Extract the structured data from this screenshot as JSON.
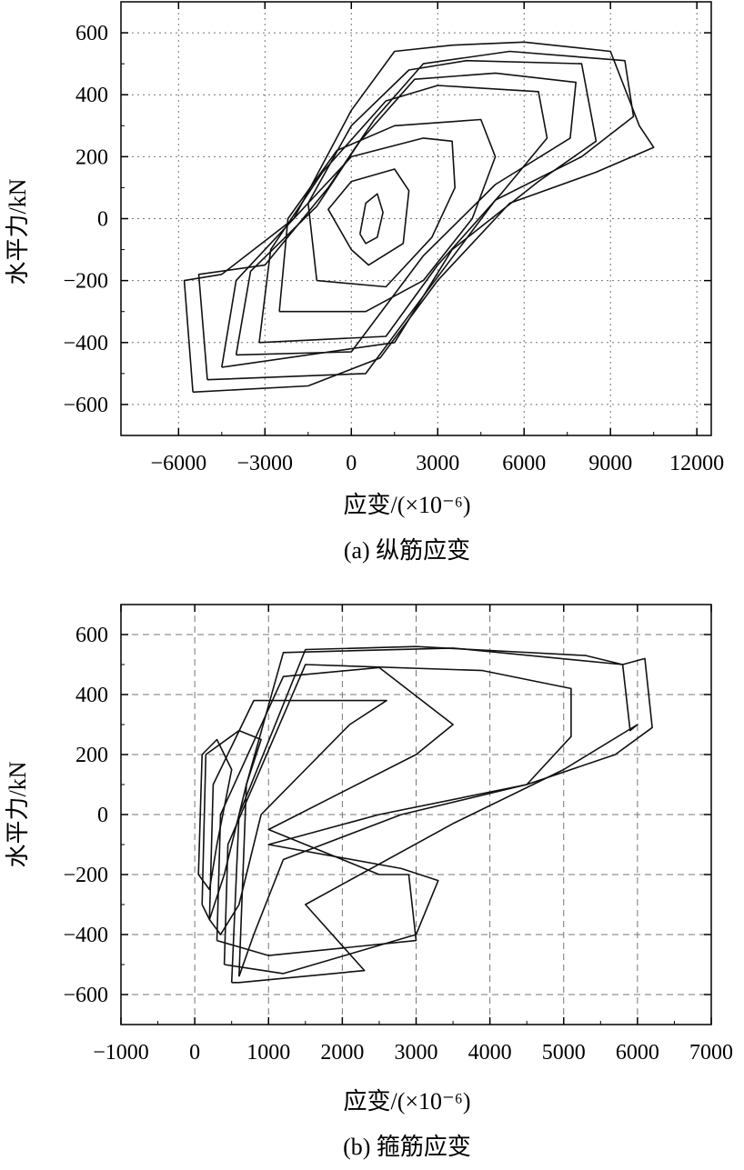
{
  "chart_data": [
    {
      "type": "line",
      "caption": "(a) 纵筋应变",
      "xlabel": "应变/(×10⁻⁶)",
      "ylabel": "水平力/kN",
      "xlim": [
        -8000,
        12500
      ],
      "ylim": [
        -700,
        700
      ],
      "xticks": [
        -6000,
        -3000,
        0,
        3000,
        6000,
        9000,
        12000
      ],
      "xtick_labels": [
        "−6000",
        "−3000",
        "0",
        "3000",
        "6000",
        "9000",
        "12000"
      ],
      "yticks": [
        -600,
        -400,
        -200,
        0,
        200,
        400,
        600
      ],
      "ytick_labels": [
        "−600",
        "−400",
        "−200",
        "0",
        "200",
        "400",
        "600"
      ],
      "grid": "dotted",
      "series": [
        {
          "points": [
            [
              300,
              -50
            ],
            [
              500,
              50
            ],
            [
              900,
              80
            ],
            [
              1100,
              20
            ],
            [
              900,
              -60
            ],
            [
              500,
              -80
            ],
            [
              300,
              -50
            ]
          ]
        },
        {
          "points": [
            [
              0,
              -100
            ],
            [
              -800,
              30
            ],
            [
              0,
              120
            ],
            [
              1500,
              160
            ],
            [
              2000,
              90
            ],
            [
              1800,
              -80
            ],
            [
              600,
              -150
            ],
            [
              0,
              -100
            ]
          ]
        },
        {
          "points": [
            [
              -1200,
              -200
            ],
            [
              -1500,
              50
            ],
            [
              0,
              200
            ],
            [
              2500,
              260
            ],
            [
              3500,
              250
            ],
            [
              3600,
              100
            ],
            [
              2800,
              -60
            ],
            [
              1200,
              -220
            ],
            [
              -1200,
              -200
            ]
          ]
        },
        {
          "points": [
            [
              -2500,
              -300
            ],
            [
              -2200,
              0
            ],
            [
              -500,
              220
            ],
            [
              1500,
              300
            ],
            [
              4500,
              320
            ],
            [
              5000,
              200
            ],
            [
              4200,
              0
            ],
            [
              2500,
              -200
            ],
            [
              500,
              -300
            ],
            [
              -2500,
              -300
            ]
          ]
        },
        {
          "points": [
            [
              -3200,
              -400
            ],
            [
              -2800,
              -100
            ],
            [
              -1000,
              150
            ],
            [
              1200,
              380
            ],
            [
              3000,
              430
            ],
            [
              6500,
              410
            ],
            [
              6800,
              260
            ],
            [
              5200,
              80
            ],
            [
              3000,
              -150
            ],
            [
              1200,
              -380
            ],
            [
              -3200,
              -400
            ]
          ]
        },
        {
          "points": [
            [
              -4500,
              -480
            ],
            [
              -4000,
              -200
            ],
            [
              -1500,
              50
            ],
            [
              0,
              300
            ],
            [
              2000,
              480
            ],
            [
              4000,
              510
            ],
            [
              8000,
              500
            ],
            [
              8500,
              250
            ],
            [
              6500,
              120
            ],
            [
              3500,
              -100
            ],
            [
              1500,
              -400
            ],
            [
              -4500,
              -480
            ]
          ]
        },
        {
          "points": [
            [
              -5500,
              -560
            ],
            [
              -5800,
              -200
            ],
            [
              -4500,
              -180
            ],
            [
              -2000,
              0
            ],
            [
              0,
              350
            ],
            [
              1500,
              540
            ],
            [
              3500,
              560
            ],
            [
              6000,
              570
            ],
            [
              9000,
              540
            ],
            [
              10000,
              300
            ],
            [
              10500,
              230
            ],
            [
              8500,
              150
            ],
            [
              5500,
              50
            ],
            [
              3000,
              -200
            ],
            [
              1000,
              -450
            ],
            [
              -1500,
              -540
            ],
            [
              -5500,
              -560
            ]
          ]
        },
        {
          "points": [
            [
              -5000,
              -520
            ],
            [
              -5300,
              -180
            ],
            [
              -3000,
              -150
            ],
            [
              -800,
              100
            ],
            [
              800,
              320
            ],
            [
              2500,
              500
            ],
            [
              5500,
              540
            ],
            [
              9500,
              510
            ],
            [
              9800,
              330
            ],
            [
              8000,
              200
            ],
            [
              5000,
              60
            ],
            [
              2500,
              -250
            ],
            [
              500,
              -500
            ],
            [
              -5000,
              -520
            ]
          ]
        },
        {
          "points": [
            [
              -4000,
              -440
            ],
            [
              -3500,
              -170
            ],
            [
              -1200,
              40
            ],
            [
              300,
              250
            ],
            [
              2200,
              450
            ],
            [
              5000,
              470
            ],
            [
              7800,
              440
            ],
            [
              7600,
              260
            ],
            [
              5000,
              110
            ],
            [
              2500,
              -120
            ],
            [
              0,
              -430
            ],
            [
              -4000,
              -440
            ]
          ]
        }
      ]
    },
    {
      "type": "line",
      "caption": "(b) 箍筋应变",
      "xlabel": "应变/(×10⁻⁶)",
      "ylabel": "水平力/kN",
      "xlim": [
        -1000,
        7000
      ],
      "ylim": [
        -700,
        700
      ],
      "xticks": [
        -1000,
        0,
        1000,
        2000,
        3000,
        4000,
        5000,
        6000,
        7000
      ],
      "xtick_labels": [
        "−1000",
        "0",
        "1000",
        "2000",
        "3000",
        "4000",
        "5000",
        "6000",
        "7000"
      ],
      "yticks": [
        -600,
        -400,
        -200,
        0,
        200,
        400,
        600
      ],
      "ytick_labels": [
        "−600",
        "−400",
        "−200",
        "0",
        "200",
        "400",
        "600"
      ],
      "grid": "dashed",
      "series": [
        {
          "points": [
            [
              50,
              -200
            ],
            [
              100,
              200
            ],
            [
              300,
              250
            ],
            [
              500,
              150
            ],
            [
              300,
              -100
            ],
            [
              200,
              -250
            ],
            [
              50,
              -200
            ]
          ]
        },
        {
          "points": [
            [
              100,
              -300
            ],
            [
              150,
              200
            ],
            [
              600,
              280
            ],
            [
              900,
              250
            ],
            [
              700,
              100
            ],
            [
              400,
              -200
            ],
            [
              200,
              -350
            ],
            [
              100,
              -300
            ]
          ]
        },
        {
          "points": [
            [
              200,
              -350
            ],
            [
              250,
              100
            ],
            [
              800,
              380
            ],
            [
              2000,
              380
            ],
            [
              2600,
              380
            ],
            [
              2100,
              300
            ],
            [
              1500,
              150
            ],
            [
              900,
              0
            ],
            [
              600,
              -300
            ],
            [
              350,
              -400
            ],
            [
              200,
              -350
            ]
          ]
        },
        {
          "points": [
            [
              300,
              -420
            ],
            [
              350,
              0
            ],
            [
              1200,
              460
            ],
            [
              2500,
              490
            ],
            [
              3500,
              300
            ],
            [
              3000,
              200
            ],
            [
              1000,
              -50
            ],
            [
              2500,
              -200
            ],
            [
              2900,
              -200
            ],
            [
              3000,
              -420
            ],
            [
              1000,
              -470
            ],
            [
              300,
              -420
            ]
          ]
        },
        {
          "points": [
            [
              400,
              -500
            ],
            [
              450,
              -100
            ],
            [
              1500,
              500
            ],
            [
              3900,
              480
            ],
            [
              5100,
              420
            ],
            [
              5100,
              260
            ],
            [
              4500,
              100
            ],
            [
              2500,
              0
            ],
            [
              1000,
              -100
            ],
            [
              2800,
              -180
            ],
            [
              3300,
              -220
            ],
            [
              3000,
              -400
            ],
            [
              1200,
              -530
            ],
            [
              400,
              -500
            ]
          ]
        },
        {
          "points": [
            [
              500,
              -560
            ],
            [
              600,
              0
            ],
            [
              1500,
              550
            ],
            [
              3000,
              560
            ],
            [
              5300,
              530
            ],
            [
              5800,
              500
            ],
            [
              5900,
              280
            ],
            [
              6000,
              300
            ],
            [
              5000,
              150
            ],
            [
              3500,
              -30
            ],
            [
              1500,
              -300
            ],
            [
              2300,
              -520
            ],
            [
              600,
              -560
            ],
            [
              500,
              -560
            ]
          ]
        },
        {
          "points": [
            [
              600,
              -540
            ],
            [
              700,
              100
            ],
            [
              1200,
              540
            ],
            [
              3500,
              555
            ],
            [
              5800,
              500
            ],
            [
              6100,
              520
            ],
            [
              6200,
              290
            ],
            [
              5700,
              200
            ],
            [
              4500,
              100
            ],
            [
              2800,
              0
            ],
            [
              1200,
              -150
            ],
            [
              800,
              -400
            ],
            [
              600,
              -540
            ]
          ]
        }
      ]
    }
  ]
}
